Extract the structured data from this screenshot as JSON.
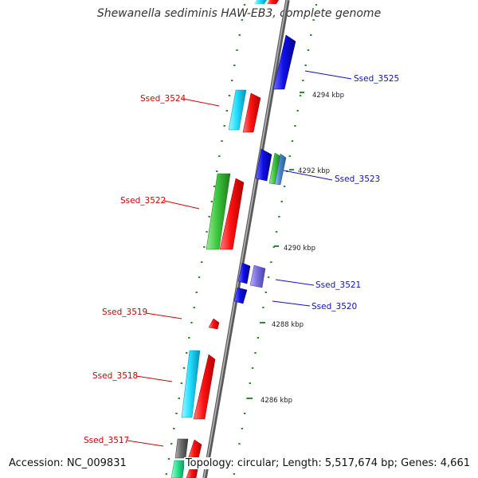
{
  "title": "Shewanella sediminis HAW-EB3, complete genome",
  "footer": {
    "accession": "Accession: NC_009831",
    "summary": "Topology: circular; Length: 5,517,674 bp; Genes: 4,661"
  },
  "colors": {
    "backbone": "#8a8a8a",
    "tick": "#2e8b2e",
    "left_label": "#d40000",
    "right_label": "#1010c0",
    "red": "#ff1010",
    "cyan": "#22e0ff",
    "green": "#3cc83c",
    "blue": "#1010e8",
    "lavender": "#7a70e0",
    "steelblue": "#4a86c8",
    "gray": "#6c6c6c",
    "mint": "#28e890"
  },
  "gene_labels": {
    "left": [
      "Ssed_3524",
      "Ssed_3522",
      "Ssed_3519",
      "Ssed_3518",
      "Ssed_3517"
    ],
    "right": [
      "Ssed_3525",
      "Ssed_3523",
      "Ssed_3521",
      "Ssed_3520"
    ]
  },
  "tick_labels": [
    "4294 kbp",
    "4292 kbp",
    "4290 kbp",
    "4288 kbp",
    "4286 kbp"
  ]
}
